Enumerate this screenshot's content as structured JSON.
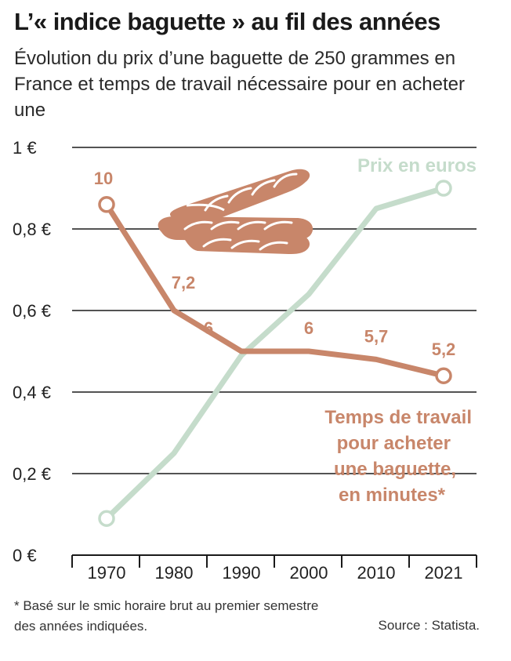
{
  "header": {
    "title": "L’« indice baguette » au fil des années",
    "subtitle": "Évolution du prix d’une baguette de 250 grammes en France et temps de travail nécessaire pour en acheter une"
  },
  "chart_data": {
    "type": "line",
    "categories": [
      "1970",
      "1980",
      "1990",
      "2000",
      "2010",
      "2021"
    ],
    "y_ticks": [
      "0 €",
      "0,2 €",
      "0,4 €",
      "0,6 €",
      "0,8 €",
      "1 €"
    ],
    "ylim": [
      0,
      1
    ],
    "grid": true,
    "series": [
      {
        "name": "Prix en euros",
        "color": "#c5dccb",
        "values": [
          0.09,
          0.25,
          0.49,
          0.64,
          0.85,
          0.9
        ]
      },
      {
        "name": "Temps de travail pour acheter une baguette, en minutes*",
        "color": "#c8866a",
        "values": [
          0.86,
          0.6,
          0.5,
          0.5,
          0.48,
          0.44
        ],
        "data_labels": [
          "10",
          "7,2",
          "6",
          "6",
          "5,7",
          "5,2"
        ]
      }
    ],
    "legend_lines": {
      "price": [
        "Prix en euros"
      ],
      "time": [
        "Temps de travail",
        "pour acheter",
        "une baguette,",
        "en minutes*"
      ]
    }
  },
  "illustration": {
    "icon": "baguette-icon",
    "color": "#c8866a"
  },
  "footer": {
    "footnote": "* Basé sur le smic horaire brut au premier semestre des années indiquées.",
    "source": "Source : Statista."
  }
}
